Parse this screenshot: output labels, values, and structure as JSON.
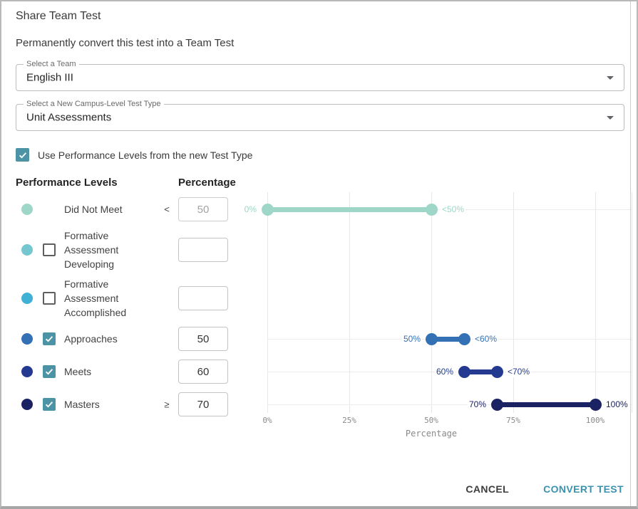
{
  "dialog": {
    "title": "Share Team Test",
    "subtitle": "Permanently convert this test into a Team Test"
  },
  "selects": {
    "team": {
      "label": "Select a Team",
      "value": "English III"
    },
    "test_type": {
      "label": "Select a New Campus-Level Test Type",
      "value": "Unit Assessments"
    }
  },
  "use_levels_checkbox": {
    "label": "Use Performance Levels from the new Test Type",
    "checked": true
  },
  "levels_table": {
    "header_levels": "Performance Levels",
    "header_percentage": "Percentage",
    "rows": [
      {
        "name": "Did Not Meet",
        "dot_color": "#9ed6c8",
        "has_checkbox": false,
        "checked": false,
        "comparator": "<",
        "value": "50",
        "disabled": true
      },
      {
        "name": "Formative Assessment Developing",
        "dot_color": "#74c6cf",
        "has_checkbox": true,
        "checked": false,
        "comparator": "",
        "value": "",
        "disabled": false
      },
      {
        "name": "Formative Assessment Accomplished",
        "dot_color": "#41b0d5",
        "has_checkbox": true,
        "checked": false,
        "comparator": "",
        "value": "",
        "disabled": false
      },
      {
        "name": "Approaches",
        "dot_color": "#3371b4",
        "has_checkbox": true,
        "checked": true,
        "comparator": "",
        "value": "50",
        "disabled": false
      },
      {
        "name": "Meets",
        "dot_color": "#243a90",
        "has_checkbox": true,
        "checked": true,
        "comparator": "",
        "value": "60",
        "disabled": false
      },
      {
        "name": "Masters",
        "dot_color": "#1b2264",
        "has_checkbox": true,
        "checked": true,
        "comparator": "≥",
        "value": "70",
        "disabled": false
      }
    ]
  },
  "chart_data": {
    "type": "bar",
    "variant": "horizontal-range-dumbbell",
    "title": "",
    "xlabel": "Percentage",
    "ylabel": "",
    "xlim": [
      0,
      100
    ],
    "x_ticks": [
      "0%",
      "25%",
      "50%",
      "75%",
      "100%"
    ],
    "x_tick_values": [
      0,
      25,
      50,
      75,
      100
    ],
    "grid": true,
    "series": [
      {
        "name": "Did Not Meet",
        "start": 0,
        "end": 50,
        "start_label": "0%",
        "end_label": "<50%",
        "color": "#9ed6c8"
      },
      {
        "name": "Approaches",
        "start": 50,
        "end": 60,
        "start_label": "50%",
        "end_label": "<60%",
        "color": "#3371b4"
      },
      {
        "name": "Meets",
        "start": 60,
        "end": 70,
        "start_label": "60%",
        "end_label": "<70%",
        "color": "#243a90"
      },
      {
        "name": "Masters",
        "start": 70,
        "end": 100,
        "start_label": "70%",
        "end_label": "100%",
        "color": "#1b2264"
      }
    ]
  },
  "footer": {
    "cancel_label": "CANCEL",
    "convert_label": "CONVERT TEST"
  },
  "colors": {
    "checkbox_checked": "#4b93a5",
    "convert_button": "#3a92af",
    "gridline": "#ececec",
    "dialog_border": "#b9b9b9"
  }
}
